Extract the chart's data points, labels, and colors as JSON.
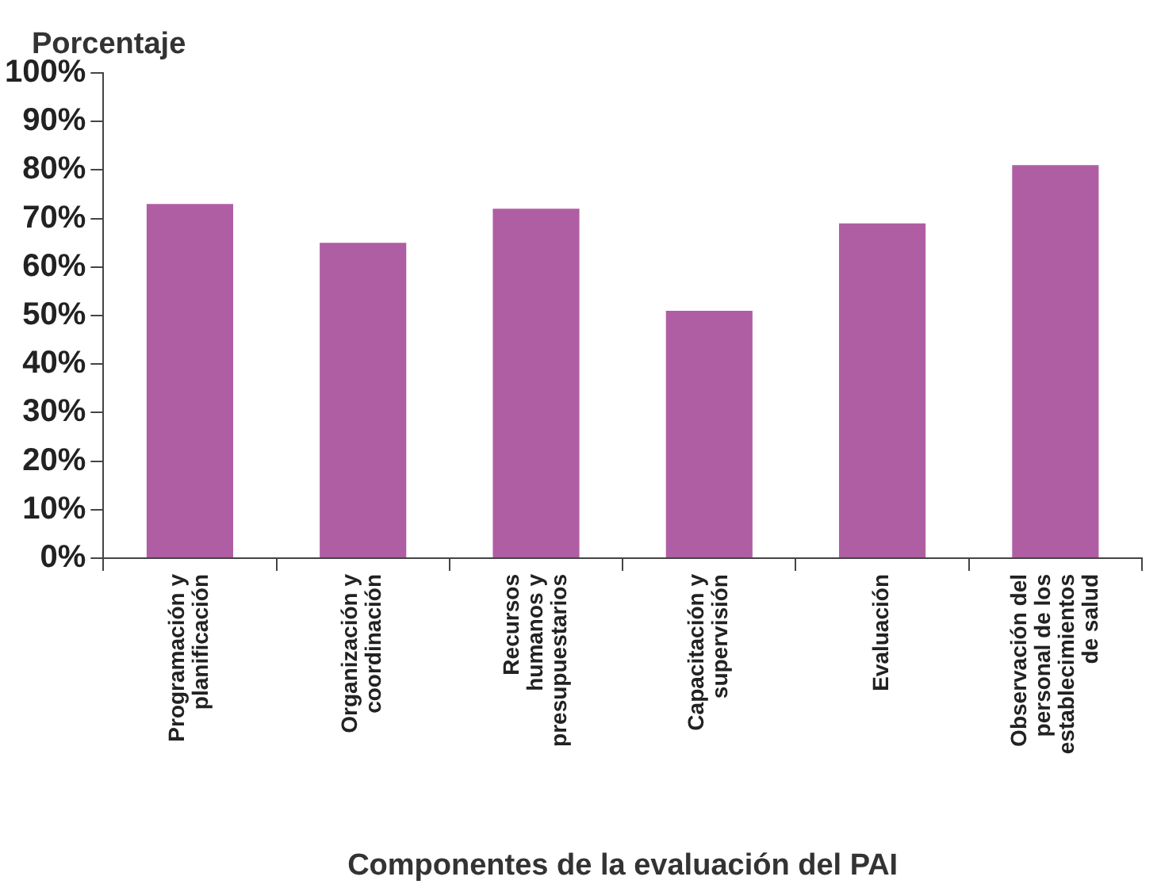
{
  "chart_data": {
    "type": "bar",
    "ylabel": "Porcentaje",
    "xlabel": "Componentes de la evaluación del PAI",
    "categories": [
      "Programación y planificación",
      "Organización y coordinación",
      "Recursos humanos y presupuestarios",
      "Capacitación y supervisión",
      "Evaluación",
      "Observación del personal de los establecimientos de salud"
    ],
    "values": [
      73,
      65,
      72,
      51,
      69,
      81
    ],
    "color": "#b05ea3",
    "ylim": [
      0,
      100
    ],
    "yticks": [
      {
        "value": 0,
        "label": "0%"
      },
      {
        "value": 10,
        "label": "10%"
      },
      {
        "value": 20,
        "label": "20%"
      },
      {
        "value": 30,
        "label": "30%"
      },
      {
        "value": 40,
        "label": "40%"
      },
      {
        "value": 50,
        "label": "50%"
      },
      {
        "value": 60,
        "label": "60%"
      },
      {
        "value": 70,
        "label": "70%"
      },
      {
        "value": 80,
        "label": "80%"
      },
      {
        "value": 90,
        "label": "90%"
      },
      {
        "value": 100,
        "label": "100%"
      }
    ],
    "grid": false,
    "legend": false
  }
}
